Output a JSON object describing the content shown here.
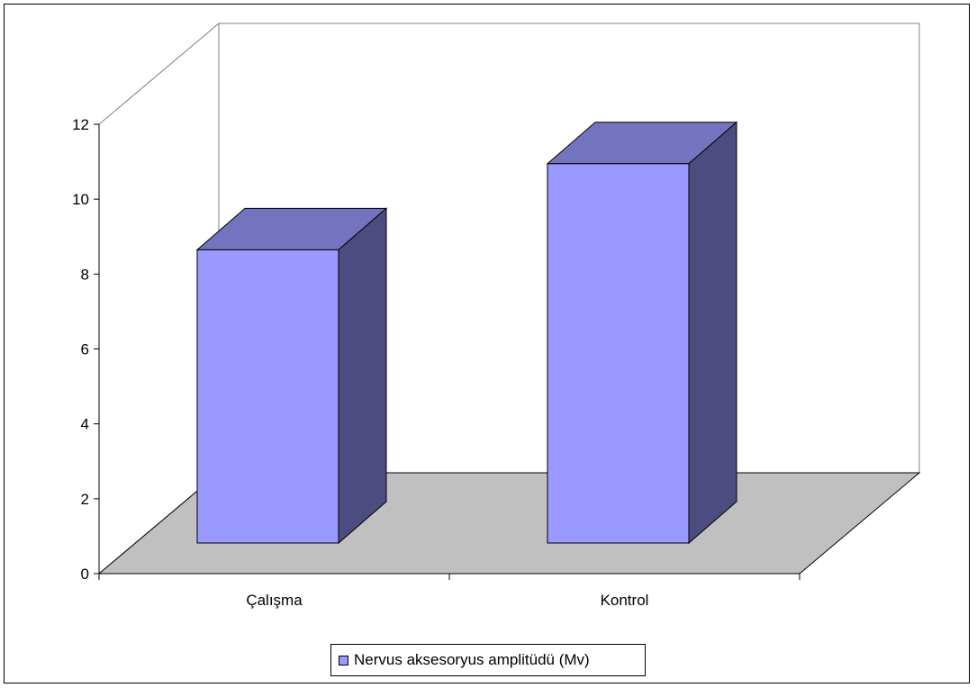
{
  "chart_data": {
    "type": "bar",
    "style": "3d-column",
    "categories": [
      "Çalışma",
      "Kontrol"
    ],
    "series": [
      {
        "name": "Nervus aksesoryus amplitüdü (Mv)",
        "values": [
          9.2,
          11.5
        ]
      }
    ],
    "title": "",
    "xlabel": "",
    "ylabel": "",
    "ylim": [
      0,
      12
    ],
    "yticks": [
      "0",
      "2",
      "4",
      "6",
      "8",
      "10",
      "12"
    ],
    "grid": false,
    "legend_position": "bottom",
    "colors": {
      "bar_front": "#9999ff",
      "bar_top": "#7373bf",
      "bar_side": "#4c4c80",
      "floor": "#c0c0c0",
      "walls": "#ffffff",
      "wall_edges": "#808080"
    }
  }
}
